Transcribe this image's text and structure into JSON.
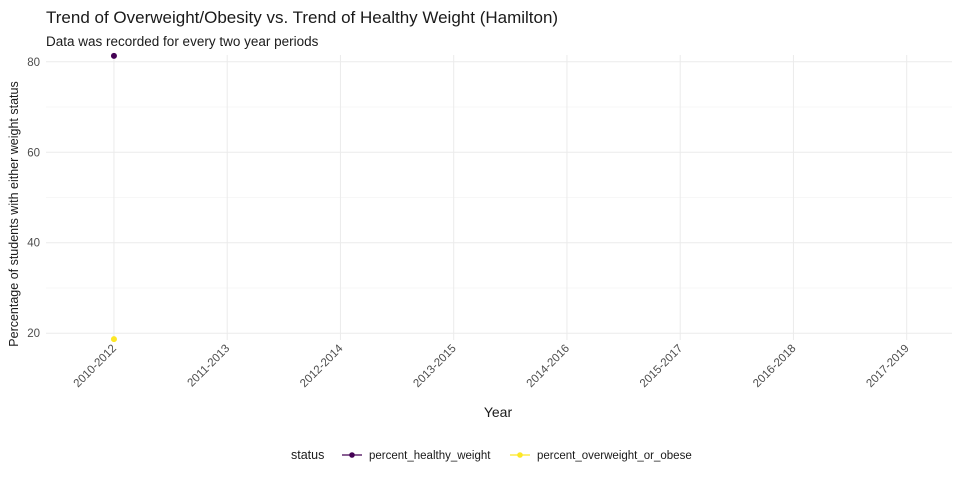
{
  "chart_data": {
    "type": "line",
    "title": "Trend of Overweight/Obesity vs. Trend of Healthy Weight (Hamilton)",
    "subtitle": "Data was recorded for every two year periods",
    "xlabel": "Year",
    "ylabel": "Percentage of students with either weight status",
    "categories": [
      "2010-2012",
      "2011-2013",
      "2012-2014",
      "2013-2015",
      "2014-2016",
      "2015-2017",
      "2016-2018",
      "2017-2019"
    ],
    "y_ticks": [
      20,
      40,
      60,
      80
    ],
    "ylim": [
      18.5,
      81.5
    ],
    "grid": true,
    "legend": {
      "title": "status",
      "position": "bottom"
    },
    "series": [
      {
        "name": "percent_healthy_weight",
        "color": "#440154",
        "values": [
          81.3,
          null,
          null,
          null,
          null,
          null,
          null,
          null
        ]
      },
      {
        "name": "percent_overweight_or_obese",
        "color": "#FDE725",
        "values": [
          18.7,
          null,
          null,
          null,
          null,
          null,
          null,
          null
        ]
      }
    ]
  }
}
